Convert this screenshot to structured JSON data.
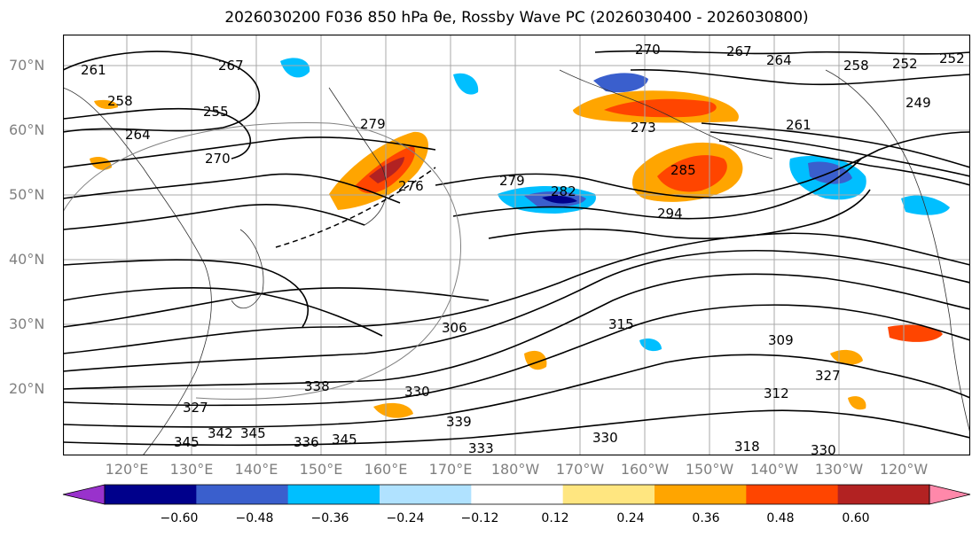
{
  "title": "2026030200 F036 850 hPa θe, Rossby Wave PC (2026030400 - 2026030800)",
  "lat_labels": [
    "70°N",
    "60°N",
    "50°N",
    "40°N",
    "30°N",
    "20°N"
  ],
  "lon_labels": [
    "120°E",
    "130°E",
    "140°E",
    "150°E",
    "160°E",
    "170°E",
    "180°W",
    "170°W",
    "160°W",
    "150°W",
    "140°W",
    "130°W",
    "120°W"
  ],
  "colorbar": {
    "ticks": [
      "−0.60",
      "−0.48",
      "−0.36",
      "−0.24",
      "−0.12",
      "0.12",
      "0.24",
      "0.36",
      "0.48",
      "0.60"
    ],
    "colors": [
      "#9932cc",
      "#00008b",
      "#3a5fcd",
      "#00bfff",
      "#b0e2ff",
      "#ffffff",
      "#ffe680",
      "#ffa500",
      "#ff4500",
      "#b22222",
      "#ff88aa"
    ]
  },
  "contour_labels": [
    "261",
    "267",
    "258",
    "255",
    "264",
    "270",
    "279",
    "276",
    "270",
    "267",
    "264",
    "258",
    "252",
    "252",
    "249",
    "273",
    "261",
    "279",
    "282",
    "285",
    "294",
    "306",
    "315",
    "309",
    "338",
    "330",
    "327",
    "339",
    "345",
    "342",
    "345",
    "336",
    "345",
    "333",
    "330",
    "318",
    "312",
    "327",
    "330"
  ],
  "anomaly_colors": {
    "pos_light": "#ffe680",
    "pos_mid": "#ffa500",
    "pos_strong": "#ff4500",
    "pos_max": "#b22222",
    "neg_light": "#b0e2ff",
    "neg_mid": "#00bfff",
    "neg_strong": "#3a5fcd",
    "neg_max": "#00008b"
  }
}
